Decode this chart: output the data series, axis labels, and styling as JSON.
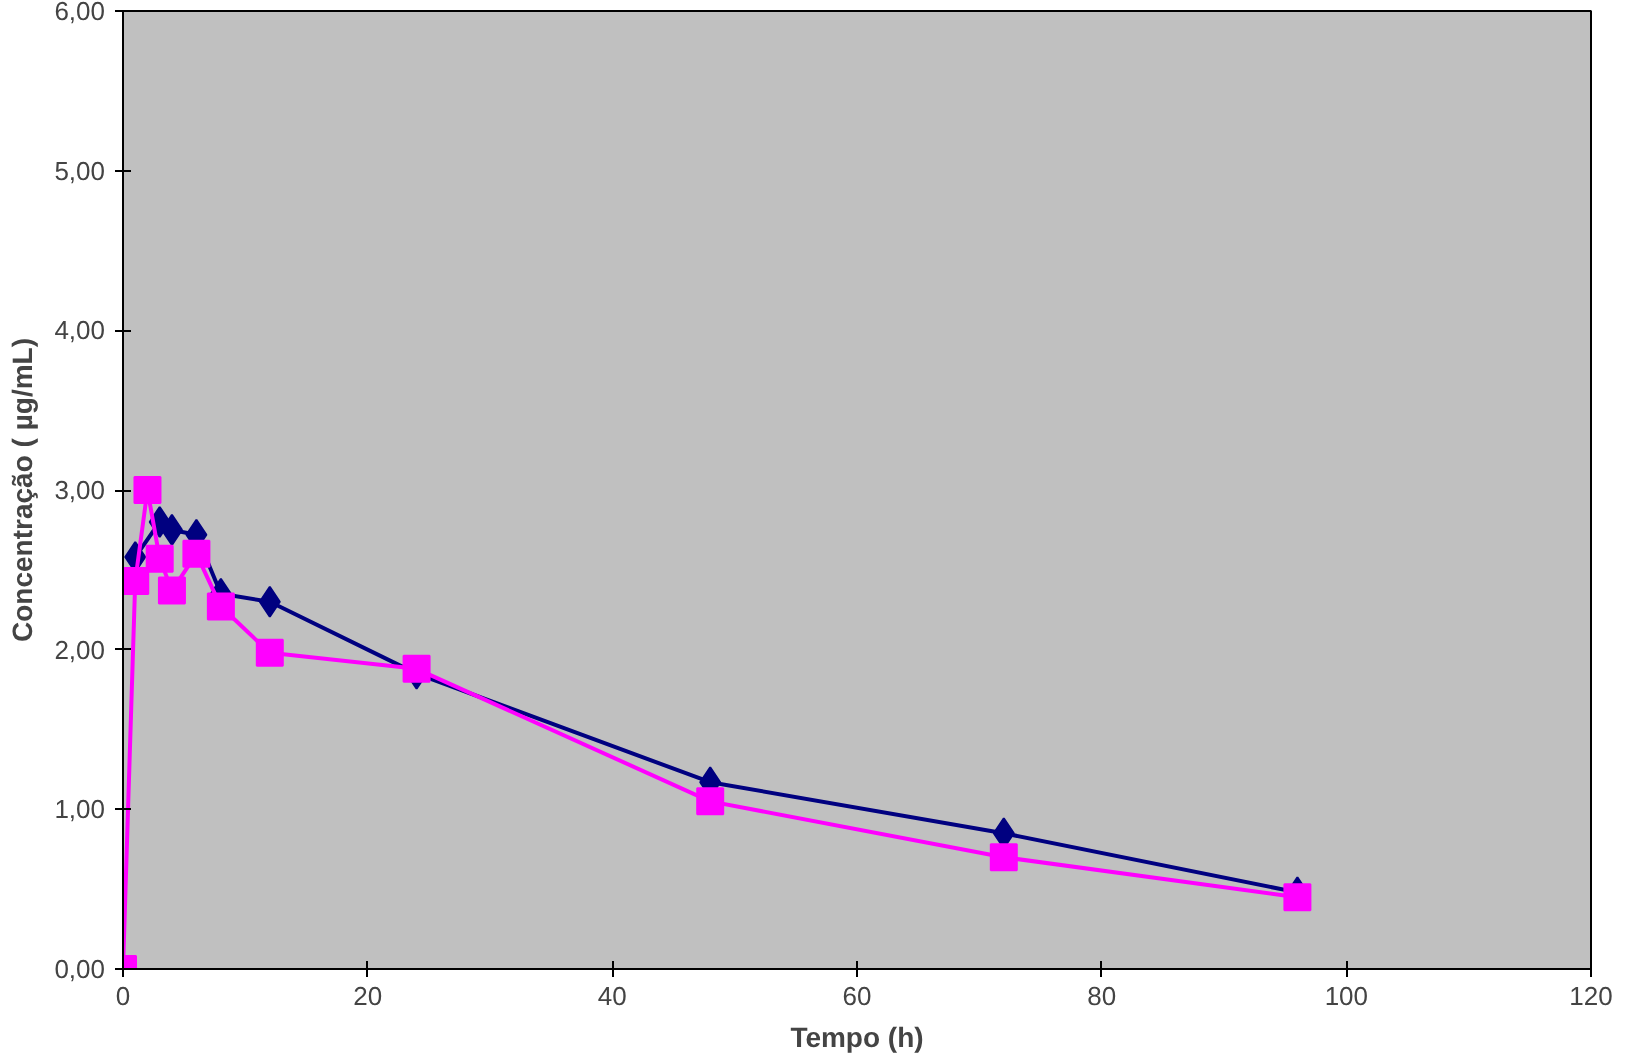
{
  "chart_data": {
    "type": "line",
    "xlabel": "Tempo (h)",
    "ylabel": "Concentração ( µg/mL)",
    "xlim": [
      0,
      120
    ],
    "xticks": [
      0,
      20,
      40,
      60,
      80,
      100,
      120
    ],
    "ylim": [
      0,
      6
    ],
    "yticks": [
      {
        "value": 0,
        "label": "0,00"
      },
      {
        "value": 1,
        "label": "1,00"
      },
      {
        "value": 2,
        "label": "2,00"
      },
      {
        "value": 3,
        "label": "3,00"
      },
      {
        "value": 4,
        "label": "4,00"
      },
      {
        "value": 5,
        "label": "5,00"
      },
      {
        "value": 6,
        "label": "6,00"
      }
    ],
    "grid": false,
    "series": [
      {
        "color": "#000080",
        "marker": "diamond",
        "x": [
          1,
          3,
          4,
          6,
          8,
          12,
          24,
          48,
          72,
          96
        ],
        "values": [
          2.58,
          2.8,
          2.75,
          2.72,
          2.35,
          2.3,
          1.85,
          1.17,
          0.85,
          0.48
        ]
      },
      {
        "color": "#ff00ff",
        "marker": "square",
        "x": [
          0,
          1,
          2,
          3,
          4,
          6,
          8,
          12,
          24,
          48,
          72,
          96
        ],
        "values": [
          0,
          2.43,
          3.0,
          2.57,
          2.37,
          2.6,
          2.27,
          1.98,
          1.88,
          1.05,
          0.7,
          0.45
        ]
      }
    ]
  }
}
